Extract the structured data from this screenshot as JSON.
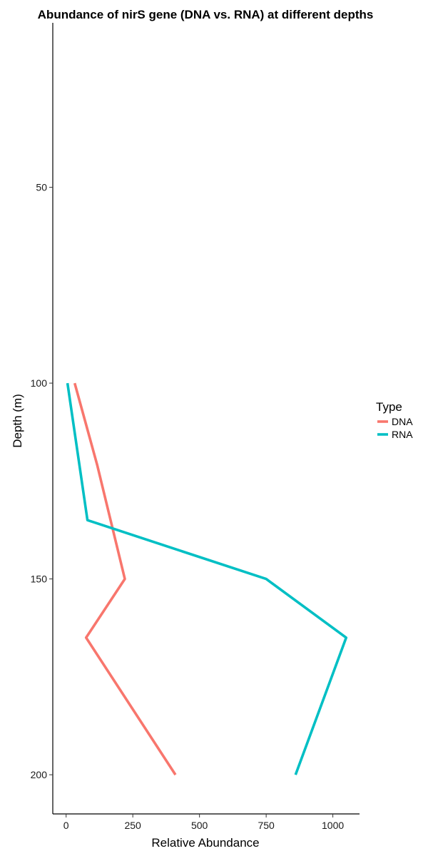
{
  "chart_data": {
    "type": "line",
    "title": "Abundance of nirS gene (DNA vs. RNA) at different depths",
    "xlabel": "Relative Abundance",
    "ylabel": "Depth (m)",
    "x_ticks": [
      0,
      250,
      500,
      750,
      1000
    ],
    "y_ticks": [
      50,
      100,
      150,
      200
    ],
    "x_tick_labels": [
      "0",
      "250",
      "500",
      "750",
      "1000"
    ],
    "y_tick_labels": [
      "50",
      "100",
      "150",
      "200"
    ],
    "xlim": [
      -50,
      1100
    ],
    "ylim": [
      8,
      210
    ],
    "y_reversed": true,
    "grid": false,
    "legend_placement": "right",
    "legend_title": "Type",
    "series": [
      {
        "name": "DNA",
        "color": "#F8766D",
        "points": [
          {
            "abundance": 32,
            "depth": 100
          },
          {
            "abundance": 117,
            "depth": 121
          },
          {
            "abundance": 220,
            "depth": 150
          },
          {
            "abundance": 75,
            "depth": 165
          },
          {
            "abundance": 410,
            "depth": 200
          }
        ]
      },
      {
        "name": "RNA",
        "color": "#00BFC4",
        "points": [
          {
            "abundance": 5,
            "depth": 100
          },
          {
            "abundance": 80,
            "depth": 135
          },
          {
            "abundance": 750,
            "depth": 150
          },
          {
            "abundance": 1050,
            "depth": 165
          },
          {
            "abundance": 860,
            "depth": 200
          }
        ]
      }
    ]
  }
}
